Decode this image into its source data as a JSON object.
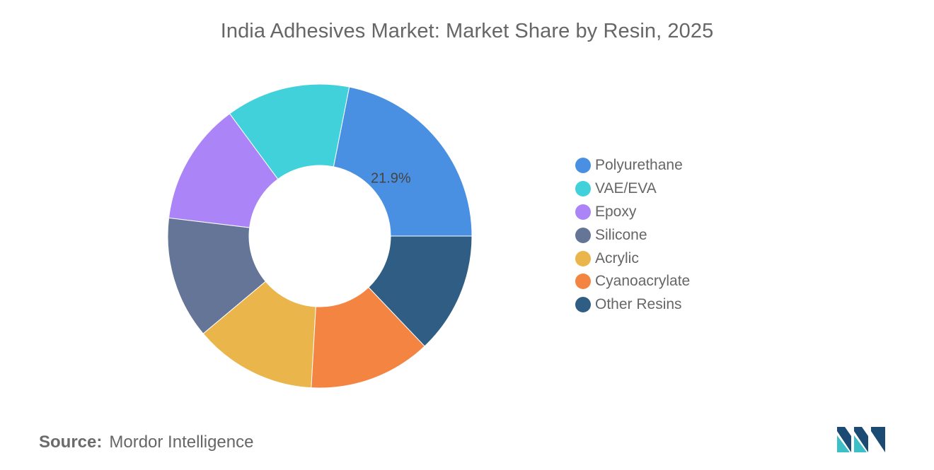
{
  "chart_data": {
    "type": "pie",
    "title": "India Adhesives Market: Market Share by Resin, 2025",
    "donut": true,
    "categories": [
      "Polyurethane",
      "VAE/EVA",
      "Epoxy",
      "Silicone",
      "Acrylic",
      "Cyanoacrylate",
      "Other Resins"
    ],
    "values": [
      21.9,
      13.2,
      13.0,
      13.0,
      13.0,
      13.0,
      12.9
    ],
    "colors": [
      "#4a90e2",
      "#41d1db",
      "#ab84f7",
      "#647597",
      "#eab54a",
      "#f38442",
      "#2f5d83"
    ],
    "data_labels": [
      {
        "category": "Polyurethane",
        "text": "21.9%"
      }
    ],
    "legend_position": "right"
  },
  "source": {
    "label": "Source:",
    "value": "Mordor Intelligence"
  },
  "logo": {
    "icon": "mordor-intelligence-logo-icon",
    "colors": [
      "#1b4a72",
      "#3dbfc8"
    ]
  }
}
